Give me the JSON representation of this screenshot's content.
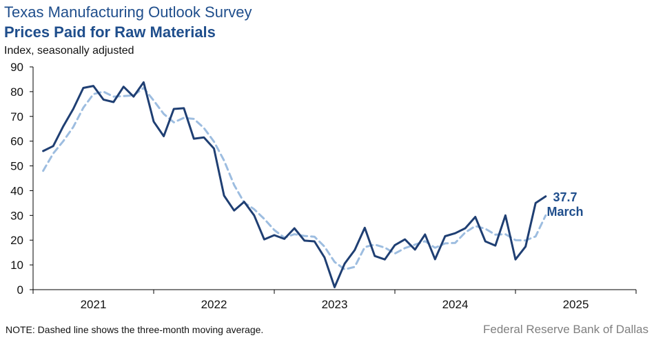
{
  "header": {
    "title": "Texas Manufacturing Outlook Survey",
    "subtitle": "Prices Paid for Raw Materials",
    "axis_label": "Index, seasonally adjusted"
  },
  "footer": {
    "note": "NOTE: Dashed line shows the three-month  moving average.",
    "source": "Federal Reserve Bank of Dallas"
  },
  "colors": {
    "index": "#1f3f73",
    "moving_average": "#9dbde0",
    "annotation": "#1f4e8c"
  },
  "chart_data": {
    "type": "line",
    "title": "Prices Paid for Raw Materials",
    "ylabel": "Index, seasonally adjusted",
    "ylim": [
      0,
      90
    ],
    "yticks": [
      0,
      10,
      20,
      30,
      40,
      50,
      60,
      70,
      80,
      90
    ],
    "x_start": "2020-12",
    "x_end": "2025-12",
    "year_labels": [
      "2021",
      "2022",
      "2023",
      "2024",
      "2025"
    ],
    "grid": false,
    "x": [
      "2021-01",
      "2021-02",
      "2021-03",
      "2021-04",
      "2021-05",
      "2021-06",
      "2021-07",
      "2021-08",
      "2021-09",
      "2021-10",
      "2021-11",
      "2021-12",
      "2022-01",
      "2022-02",
      "2022-03",
      "2022-04",
      "2022-05",
      "2022-06",
      "2022-07",
      "2022-08",
      "2022-09",
      "2022-10",
      "2022-11",
      "2022-12",
      "2023-01",
      "2023-02",
      "2023-03",
      "2023-04",
      "2023-05",
      "2023-06",
      "2023-07",
      "2023-08",
      "2023-09",
      "2023-10",
      "2023-11",
      "2023-12",
      "2024-01",
      "2024-02",
      "2024-03",
      "2024-04",
      "2024-05",
      "2024-06",
      "2024-07",
      "2024-08",
      "2024-09",
      "2024-10",
      "2024-11",
      "2024-12",
      "2025-01",
      "2025-02",
      "2025-03"
    ],
    "series": [
      {
        "style": "solid",
        "values": [
          56,
          58,
          66,
          73,
          81.5,
          82.3,
          76.8,
          75.8,
          82,
          78,
          83.8,
          67.9,
          62,
          73,
          73.3,
          61,
          61.5,
          57,
          38,
          32,
          35.5,
          30,
          20.3,
          22,
          20.5,
          24.8,
          19.8,
          19.5,
          13,
          1,
          10.5,
          16,
          25,
          13.6,
          12.2,
          18,
          20.3,
          16.2,
          22.3,
          12.3,
          21.6,
          22.8,
          24.8,
          29.4,
          19.5,
          17.8,
          30,
          12.2,
          17.4,
          35,
          37.7
        ]
      },
      {
        "style": "dashed",
        "values": [
          48,
          55,
          60,
          65.7,
          73.5,
          79,
          80,
          78,
          78.2,
          78.5,
          81.5,
          76.4,
          71,
          67.6,
          69.4,
          69,
          65.3,
          59.8,
          52.2,
          42.3,
          35.2,
          32.5,
          28.6,
          24.1,
          21,
          22.4,
          21.7,
          21.4,
          17.4,
          11.2,
          8.2,
          9.2,
          17.2,
          18.2,
          17,
          14.6,
          16.8,
          18.2,
          19.6,
          16.9,
          18.7,
          18.9,
          23.1,
          25.7,
          24.6,
          22.2,
          22.4,
          20,
          19.9,
          21.5,
          30.0
        ]
      }
    ],
    "annotation": {
      "value": "37.7",
      "label": "March"
    }
  }
}
